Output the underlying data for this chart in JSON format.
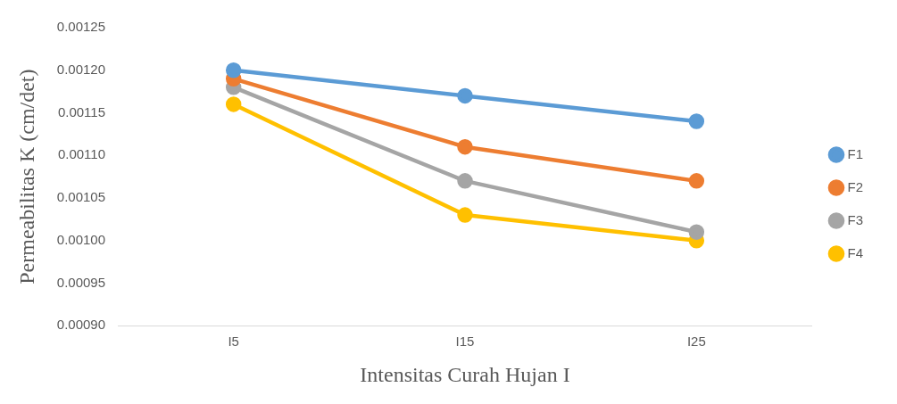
{
  "chart_data": {
    "type": "line",
    "xlabel": "Intensitas Curah Hujan I",
    "ylabel": "Permeabilitas K (cm/det)",
    "categories": [
      "I5",
      "I15",
      "I25"
    ],
    "series": [
      {
        "name": "F1",
        "color": "#5b9bd5",
        "values": [
          0.0012,
          0.00117,
          0.00114
        ]
      },
      {
        "name": "F2",
        "color": "#ed7d31",
        "values": [
          0.00119,
          0.00111,
          0.00107
        ]
      },
      {
        "name": "F3",
        "color": "#a5a5a5",
        "values": [
          0.00118,
          0.00107,
          0.00101
        ]
      },
      {
        "name": "F4",
        "color": "#ffc000",
        "values": [
          0.00116,
          0.00103,
          0.001
        ]
      }
    ],
    "ylim": [
      0.0009,
      0.00125
    ],
    "yticks": [
      {
        "value": 0.0009,
        "label": "0.00090"
      },
      {
        "value": 0.00095,
        "label": "0.00095"
      },
      {
        "value": 0.001,
        "label": "0.00100"
      },
      {
        "value": 0.00105,
        "label": "0.00105"
      },
      {
        "value": 0.0011,
        "label": "0.00110"
      },
      {
        "value": 0.00115,
        "label": "0.00115"
      },
      {
        "value": 0.0012,
        "label": "0.00120"
      },
      {
        "value": 0.00125,
        "label": "0.00125"
      }
    ],
    "grid": false,
    "legend": "right",
    "marker": "circle",
    "line_style": "solid"
  }
}
